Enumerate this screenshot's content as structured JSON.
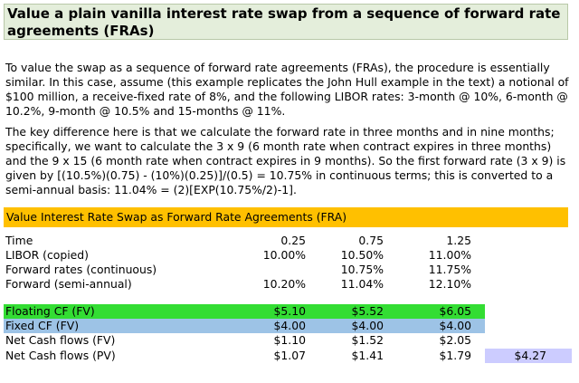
{
  "title": "Value a plain vanilla interest rate swap from a sequence of forward rate agreements (FRAs)",
  "paragraphs": [
    "To value the swap as a sequence of forward rate agreements (FRAs), the procedure is essentially similar. In this case, assume (this example replicates the John Hull example in the text) a notional of $100 million, a receive-fixed rate of 8%, and the following LIBOR rates: 3-month @ 10%, 6-month @ 10.2%, 9-month @ 10.5% and 15-months @ 11%.",
    "The key difference here is that we calculate the forward rate in three months and in nine months; specifically, we want to calculate the 3 x 9 (6 month rate when contract expires in three months) and the 9 x 15 (6 month rate when contract expires in 9 months). So the first forward rate (3 x 9) is given by [(10.5%)(0.75) - (10%)(0.25)]/(0.5) = 10.75% in continuous terms; this is converted to a semi-annual basis: 11.04% = (2)[EXP(10.75%/2)-1]."
  ],
  "table": {
    "header": "Value Interest Rate Swap as Forward Rate Agreements (FRA)",
    "rows": [
      {
        "label": "Time",
        "v1": "0.25",
        "v2": "0.75",
        "v3": "1.25",
        "total": ""
      },
      {
        "label": "LIBOR (copied)",
        "v1": "10.00%",
        "v2": "10.50%",
        "v3": "11.00%",
        "total": ""
      },
      {
        "label": "Forward rates (continuous)",
        "v1": "",
        "v2": "10.75%",
        "v3": "11.75%",
        "total": ""
      },
      {
        "label": "Forward (semi-annual)",
        "v1": "10.20%",
        "v2": "11.04%",
        "v3": "12.10%",
        "total": ""
      },
      {
        "label": "Floating CF (FV)",
        "v1": "$5.10",
        "v2": "$5.52",
        "v3": "$6.05",
        "total": ""
      },
      {
        "label": "Fixed CF (FV)",
        "v1": "$4.00",
        "v2": "$4.00",
        "v3": "$4.00",
        "total": ""
      },
      {
        "label": "Net Cash flows (FV)",
        "v1": "$1.10",
        "v2": "$1.52",
        "v3": "$2.05",
        "total": ""
      },
      {
        "label": "Net Cash flows (PV)",
        "v1": "$1.07",
        "v2": "$1.41",
        "v3": "$1.79",
        "total": "$4.27"
      }
    ]
  },
  "colors": {
    "title_bg": "#e4eedb",
    "table_header_bg": "#ffc000",
    "floating_row_bg": "#33dd33",
    "fixed_row_bg": "#9dc3e6",
    "total_bg": "#ccccff"
  }
}
